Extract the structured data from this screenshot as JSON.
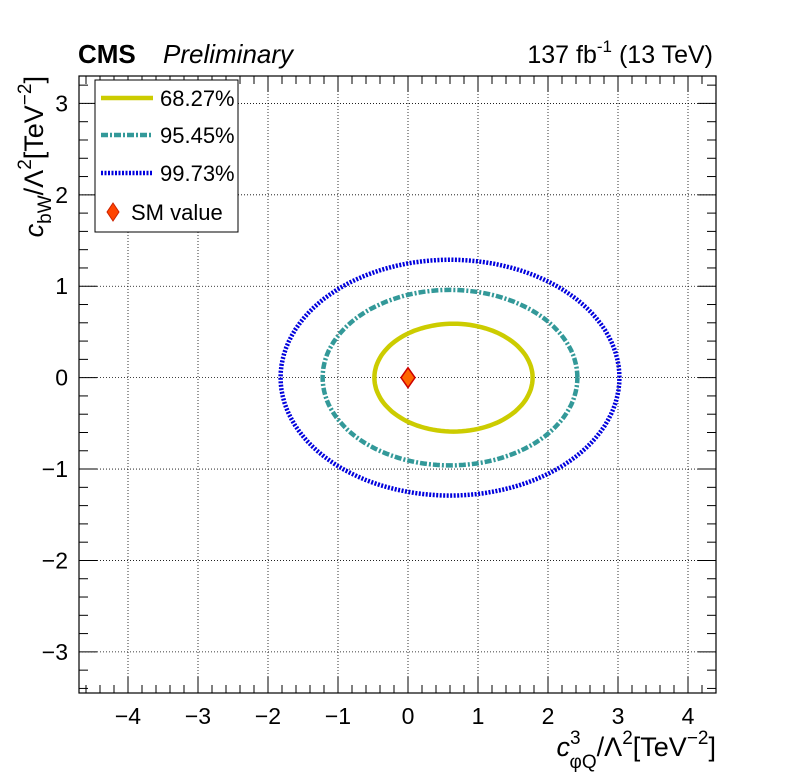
{
  "header": {
    "experiment": "CMS",
    "status": "Preliminary",
    "lumi_value": "137 fb",
    "lumi_exp": "-1",
    "energy": " (13 TeV)"
  },
  "chart_data": {
    "type": "contour",
    "xlabel": {
      "base": "c",
      "sup": "3",
      "sub": "φQ",
      "rest": "/Λ",
      "rest_sup": "2",
      "unit": "[TeV",
      "unit_sup": "−2",
      "unit_close": "]"
    },
    "ylabel": {
      "base": "c",
      "sub": "bW",
      "rest": "/Λ",
      "rest_sup": "2",
      "unit": "[TeV",
      "unit_sup": "−2",
      "unit_close": "]"
    },
    "xlim": [
      -4.7,
      4.4
    ],
    "ylim": [
      -3.45,
      3.3
    ],
    "xticks": [
      -4,
      -3,
      -2,
      -1,
      0,
      1,
      2,
      3,
      4
    ],
    "xtick_labels": [
      "−4",
      "−3",
      "−2",
      "−1",
      "0",
      "1",
      "2",
      "3",
      "4"
    ],
    "yticks": [
      -3,
      -2,
      -1,
      0,
      1,
      2,
      3
    ],
    "ytick_labels": [
      "−3",
      "−2",
      "−1",
      "0",
      "1",
      "2",
      "3"
    ],
    "grid": true,
    "legend_position": "top-left",
    "series": [
      {
        "name": "68.27%",
        "style": "solid",
        "color": "#cccc00",
        "center": [
          0.65,
          0.0
        ],
        "half_width": 1.13,
        "half_height": 0.59
      },
      {
        "name": "95.45%",
        "style": "dash-dot",
        "color": "#339999",
        "center": [
          0.6,
          0.0
        ],
        "half_width": 1.82,
        "half_height": 0.96
      },
      {
        "name": "99.73%",
        "style": "dotted",
        "color": "#0000dd",
        "center": [
          0.6,
          0.0
        ],
        "half_width": 2.42,
        "half_height": 1.29
      }
    ],
    "sm_point": {
      "name": "SM value",
      "x": 0,
      "y": 0,
      "fill": "#ff6600",
      "stroke": "#cc0000"
    }
  }
}
